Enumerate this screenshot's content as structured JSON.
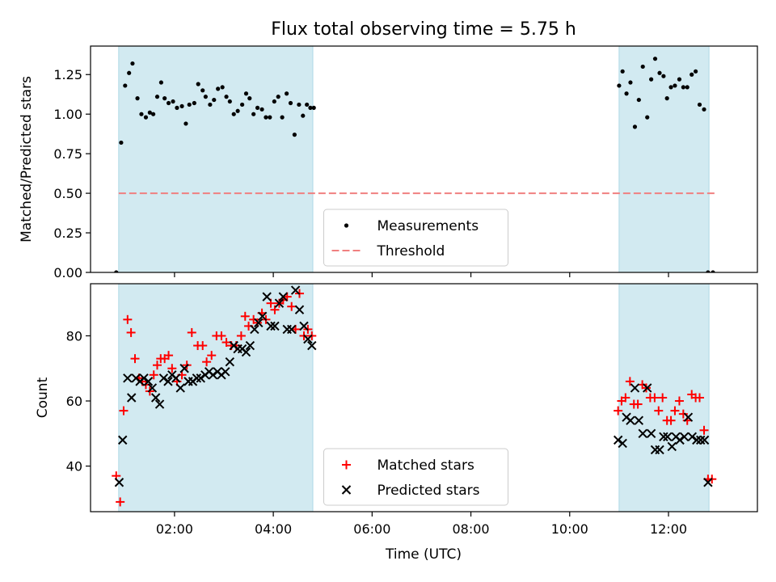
{
  "chart_data": {
    "type": "scatter",
    "title": "Flux total observing time = 5.75 h",
    "xlabel": "Time (UTC)",
    "x_unit": "hours UTC",
    "x_ticks": [
      2,
      4,
      6,
      8,
      10,
      12
    ],
    "x_tick_labels": [
      "02:00",
      "04:00",
      "06:00",
      "08:00",
      "10:00",
      "12:00"
    ],
    "xlim": [
      0.3,
      13.8
    ],
    "shaded_intervals": [
      [
        0.87,
        4.8
      ],
      [
        11.0,
        12.82
      ]
    ],
    "shade_color": "#add8e6",
    "panels": [
      {
        "ylabel": "Matched/Predicted stars",
        "ylim": [
          0,
          1.43
        ],
        "y_ticks": [
          0,
          0.25,
          0.5,
          0.75,
          1.0,
          1.25
        ],
        "y_tick_labels": [
          "0.00",
          "0.25",
          "0.50",
          "0.75",
          "1.00",
          "1.25"
        ],
        "legend": {
          "position": "bottom-center",
          "entries": [
            "Measurements",
            "Threshold"
          ]
        },
        "threshold": {
          "name": "Threshold",
          "y": 0.5,
          "x_range": [
            0.87,
            12.95
          ],
          "color": "#f08080"
        },
        "series": [
          {
            "name": "Measurements",
            "marker": "dot",
            "color": "#000000",
            "x": [
              0.82,
              0.92,
              1.0,
              1.08,
              1.15,
              1.25,
              1.33,
              1.42,
              1.5,
              1.57,
              1.65,
              1.73,
              1.8,
              1.88,
              1.97,
              2.05,
              2.15,
              2.23,
              2.3,
              2.4,
              2.48,
              2.57,
              2.63,
              2.72,
              2.8,
              2.88,
              2.97,
              3.05,
              3.12,
              3.2,
              3.28,
              3.37,
              3.45,
              3.52,
              3.6,
              3.68,
              3.77,
              3.85,
              3.93,
              4.02,
              4.1,
              4.18,
              4.27,
              4.35,
              4.43,
              4.52,
              4.6,
              4.68,
              4.75,
              4.82,
              11.0,
              11.07,
              11.15,
              11.23,
              11.32,
              11.4,
              11.48,
              11.57,
              11.65,
              11.73,
              11.82,
              11.9,
              11.97,
              12.05,
              12.13,
              12.22,
              12.3,
              12.38,
              12.47,
              12.55,
              12.63,
              12.72,
              12.8,
              12.9
            ],
            "y": [
              0.0,
              0.82,
              1.18,
              1.26,
              1.32,
              1.1,
              1.0,
              0.98,
              1.01,
              1.0,
              1.11,
              1.2,
              1.1,
              1.07,
              1.08,
              1.04,
              1.05,
              0.94,
              1.06,
              1.07,
              1.19,
              1.15,
              1.11,
              1.06,
              1.09,
              1.16,
              1.17,
              1.11,
              1.08,
              1.0,
              1.02,
              1.06,
              1.13,
              1.1,
              1.0,
              1.04,
              1.03,
              0.98,
              0.98,
              1.08,
              1.11,
              0.98,
              1.13,
              1.07,
              0.87,
              1.06,
              0.99,
              1.06,
              1.04,
              1.04,
              1.18,
              1.27,
              1.13,
              1.2,
              0.92,
              1.09,
              1.3,
              0.98,
              1.22,
              1.35,
              1.26,
              1.24,
              1.1,
              1.17,
              1.18,
              1.22,
              1.17,
              1.17,
              1.25,
              1.27,
              1.06,
              1.03,
              0.0,
              0.0
            ]
          }
        ]
      },
      {
        "ylabel": "Count",
        "ylim": [
          26,
          96
        ],
        "y_ticks": [
          40,
          60,
          80
        ],
        "y_tick_labels": [
          "40",
          "60",
          "80"
        ],
        "legend": {
          "position": "bottom-center",
          "entries": [
            "Matched stars",
            "Predicted stars"
          ]
        },
        "series": [
          {
            "name": "Matched stars",
            "marker": "plus",
            "color": "#ff0000",
            "x": [
              0.82,
              0.9,
              0.97,
              1.05,
              1.12,
              1.2,
              1.28,
              1.35,
              1.42,
              1.5,
              1.58,
              1.65,
              1.72,
              1.8,
              1.88,
              1.95,
              2.05,
              2.15,
              2.25,
              2.35,
              2.47,
              2.57,
              2.65,
              2.75,
              2.85,
              2.95,
              3.05,
              3.15,
              3.25,
              3.35,
              3.43,
              3.5,
              3.6,
              3.68,
              3.77,
              3.85,
              3.95,
              4.03,
              4.12,
              4.2,
              4.28,
              4.37,
              4.45,
              4.53,
              4.62,
              4.7,
              4.78,
              10.98,
              11.05,
              11.13,
              11.22,
              11.3,
              11.38,
              11.47,
              11.55,
              11.63,
              11.72,
              11.8,
              11.88,
              11.97,
              12.05,
              12.13,
              12.22,
              12.3,
              12.38,
              12.47,
              12.55,
              12.63,
              12.72,
              12.8,
              12.88
            ],
            "y": [
              37,
              29,
              57,
              85,
              81,
              73,
              67,
              66,
              65,
              63,
              68,
              71,
              73,
              73,
              74,
              70,
              66,
              68,
              71,
              81,
              77,
              77,
              72,
              74,
              80,
              80,
              78,
              77,
              77,
              80,
              86,
              83,
              85,
              84,
              87,
              85,
              90,
              88,
              90,
              91,
              92,
              89,
              82,
              93,
              80,
              82,
              80,
              57,
              60,
              61,
              66,
              59,
              59,
              65,
              64,
              61,
              61,
              57,
              61,
              54,
              54,
              57,
              60,
              56,
              54,
              62,
              61,
              61,
              51,
              36,
              36
            ]
          },
          {
            "name": "Predicted stars",
            "marker": "x",
            "color": "#000000",
            "x": [
              0.88,
              0.95,
              1.05,
              1.13,
              1.22,
              1.3,
              1.38,
              1.47,
              1.55,
              1.62,
              1.7,
              1.78,
              1.87,
              1.95,
              2.03,
              2.12,
              2.2,
              2.28,
              2.37,
              2.45,
              2.53,
              2.62,
              2.7,
              2.78,
              2.87,
              2.95,
              3.03,
              3.12,
              3.2,
              3.28,
              3.37,
              3.45,
              3.53,
              3.62,
              3.7,
              3.78,
              3.87,
              3.95,
              4.03,
              4.12,
              4.2,
              4.28,
              4.37,
              4.45,
              4.53,
              4.62,
              4.7,
              4.78,
              10.98,
              11.07,
              11.15,
              11.23,
              11.32,
              11.4,
              11.48,
              11.57,
              11.65,
              11.73,
              11.82,
              11.9,
              11.98,
              12.07,
              12.15,
              12.23,
              12.32,
              12.4,
              12.48,
              12.57,
              12.65,
              12.73,
              12.8
            ],
            "y": [
              35,
              48,
              67,
              61,
              67,
              66,
              67,
              66,
              64,
              61,
              59,
              67,
              66,
              68,
              67,
              64,
              70,
              66,
              66,
              67,
              67,
              68,
              69,
              68,
              69,
              68,
              69,
              72,
              77,
              76,
              76,
              75,
              77,
              82,
              84,
              86,
              92,
              83,
              83,
              90,
              92,
              82,
              82,
              94,
              88,
              83,
              79,
              77,
              48,
              47,
              55,
              54,
              64,
              54,
              50,
              64,
              50,
              45,
              45,
              49,
              49,
              46,
              49,
              48,
              49,
              55,
              49,
              48,
              48,
              48,
              35
            ]
          }
        ]
      }
    ]
  }
}
